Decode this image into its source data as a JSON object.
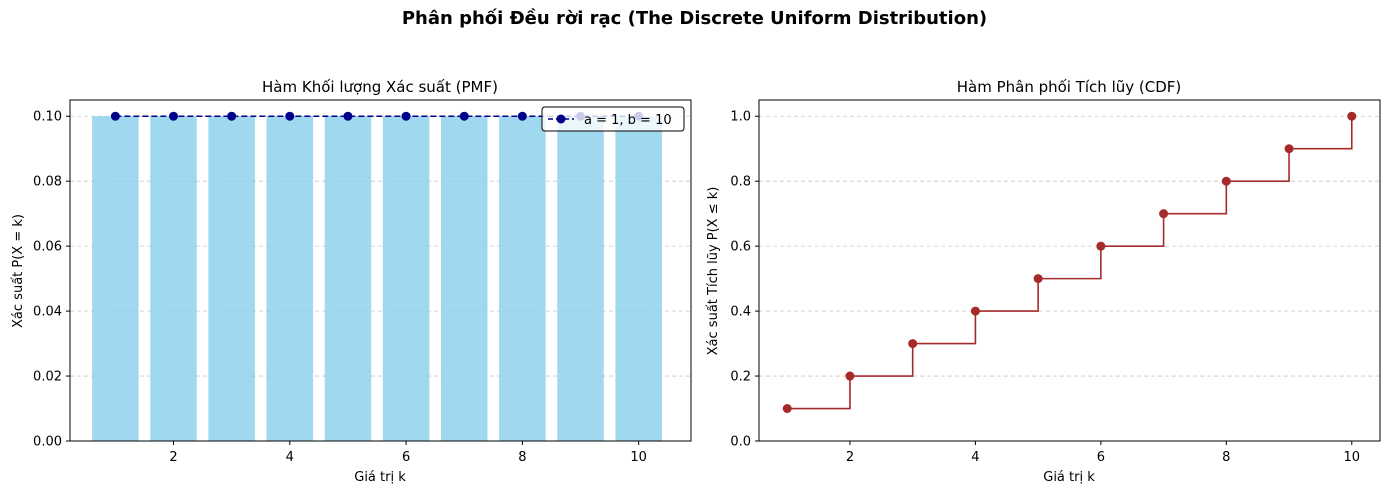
{
  "figure": {
    "suptitle": "Phân phối Đều rời rạc (The Discrete Uniform Distribution)"
  },
  "chart_data": [
    {
      "type": "bar",
      "title": "Hàm Khối lượng Xác suất (PMF)",
      "xlabel": "Giá trị k",
      "ylabel": "Xác suất P(X = k)",
      "x": [
        1,
        2,
        3,
        4,
        5,
        6,
        7,
        8,
        9,
        10
      ],
      "values": [
        0.1,
        0.1,
        0.1,
        0.1,
        0.1,
        0.1,
        0.1,
        0.1,
        0.1,
        0.1
      ],
      "xlim": [
        0.22,
        10.9
      ],
      "ylim": [
        0,
        0.105
      ],
      "xticks": [
        2,
        4,
        6,
        8,
        10
      ],
      "yticks": [
        0.0,
        0.02,
        0.04,
        0.06,
        0.08,
        0.1
      ],
      "ytick_labels": [
        "0.00",
        "0.02",
        "0.04",
        "0.06",
        "0.08",
        "0.10"
      ],
      "grid": "y-dashed",
      "bar_color": "#87CEEB",
      "overlay": {
        "type": "line",
        "name": "a = 1, b = 10",
        "style": "dashed-with-markers",
        "color": "#00008B",
        "x": [
          1,
          2,
          3,
          4,
          5,
          6,
          7,
          8,
          9,
          10
        ],
        "values": [
          0.1,
          0.1,
          0.1,
          0.1,
          0.1,
          0.1,
          0.1,
          0.1,
          0.1,
          0.1
        ]
      },
      "legend": "top-right"
    },
    {
      "type": "line",
      "subtype": "step",
      "title": "Hàm Phân phối Tích lũy (CDF)",
      "xlabel": "Giá trị k",
      "ylabel": "Xác suất Tích lũy P(X ≤ k)",
      "x": [
        1,
        2,
        3,
        4,
        5,
        6,
        7,
        8,
        9,
        10
      ],
      "values": [
        0.1,
        0.2,
        0.3,
        0.4,
        0.5,
        0.6,
        0.7,
        0.8,
        0.9,
        1.0
      ],
      "xlim": [
        0.55,
        10.45
      ],
      "ylim": [
        0,
        1.05
      ],
      "xticks": [
        2,
        4,
        6,
        8,
        10
      ],
      "yticks": [
        0.0,
        0.2,
        0.4,
        0.6,
        0.8,
        1.0
      ],
      "ytick_labels": [
        "0.0",
        "0.2",
        "0.4",
        "0.6",
        "0.8",
        "1.0"
      ],
      "grid": "y-dashed",
      "color": "#A52A2A"
    }
  ]
}
